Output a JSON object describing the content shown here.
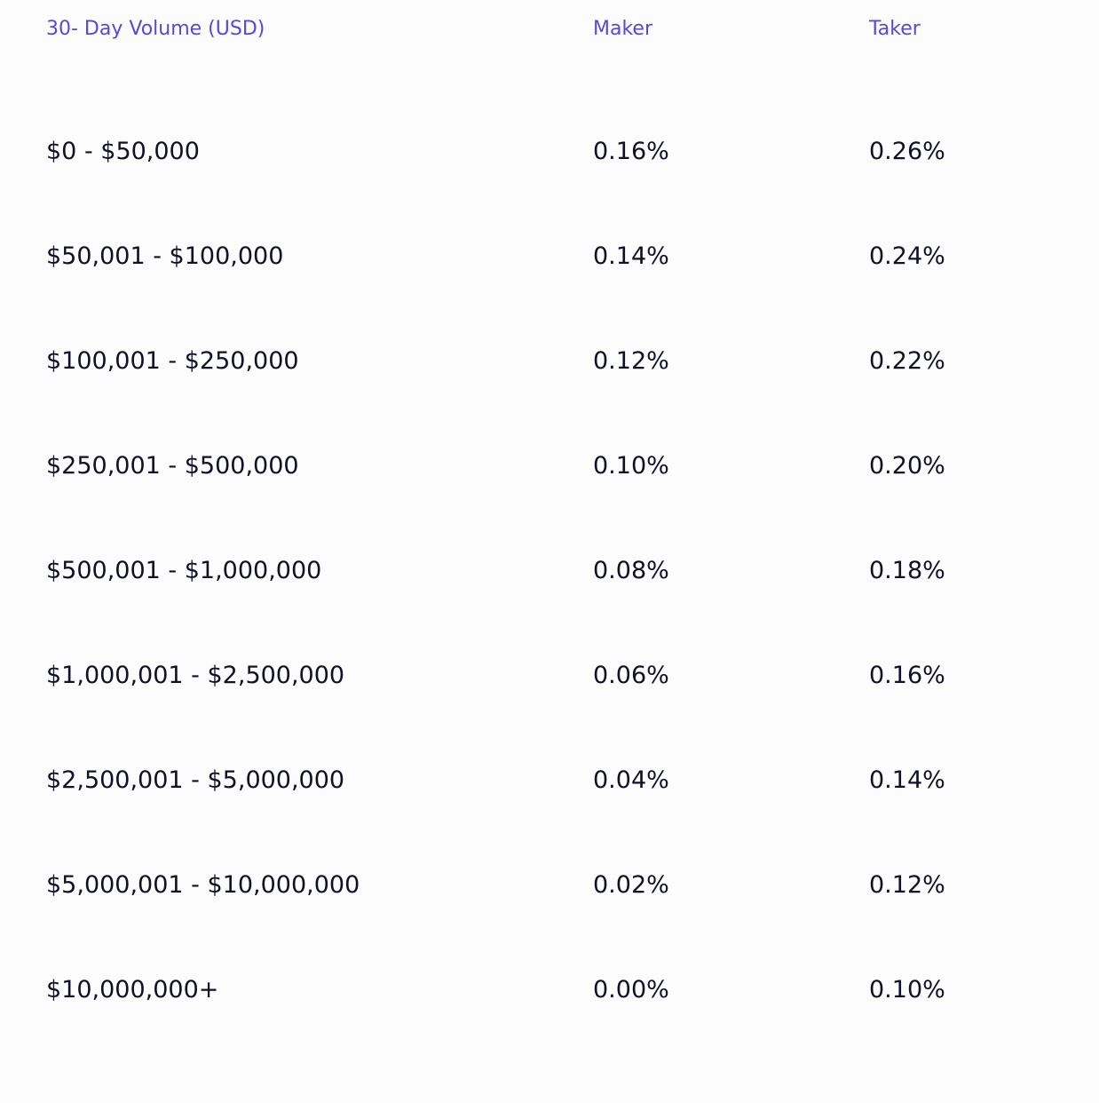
{
  "table": {
    "header": [
      "30- Day Volume (USD)",
      "Maker",
      "Taker"
    ],
    "rows": [
      [
        "$0 - $50,000",
        "0.16%",
        "0.26%"
      ],
      [
        "$50,001 - $100,000",
        "0.14%",
        "0.24%"
      ],
      [
        "$100,001 - $250,000",
        "0.12%",
        "0.22%"
      ],
      [
        "$250,001 - $500,000",
        "0.10%",
        "0.20%"
      ],
      [
        "$500,001 - $1,000,000",
        "0.08%",
        "0.18%"
      ],
      [
        "$1,000,001 - $2,500,000",
        "0.06%",
        "0.16%"
      ],
      [
        "$2,500,001 - $5,000,000",
        "0.04%",
        "0.14%"
      ],
      [
        "$5,000,001 - $10,000,000",
        "0.02%",
        "0.12%"
      ],
      [
        "$10,000,000+",
        "0.00%",
        "0.10%"
      ]
    ]
  }
}
